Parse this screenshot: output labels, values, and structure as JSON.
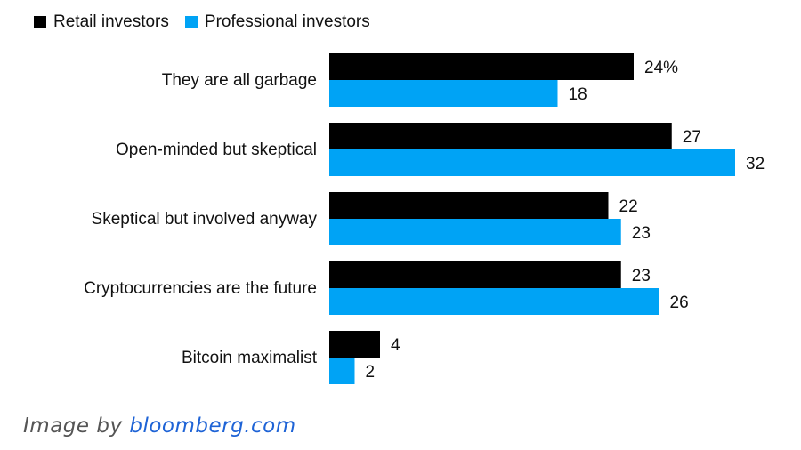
{
  "legend": {
    "retail": "Retail investors",
    "professional": "Professional investors"
  },
  "credit": {
    "prefix": "Image by",
    "site": "bloomberg.com"
  },
  "chart_data": {
    "type": "bar",
    "orientation": "horizontal",
    "grid": false,
    "legend_position": "top-left",
    "categories": [
      "They are all garbage",
      "Open-minded but skeptical",
      "Skeptical but involved anyway",
      "Cryptocurrencies are the future",
      "Bitcoin maximalist"
    ],
    "series": [
      {
        "name": "Retail investors",
        "color": "#000000",
        "values": [
          24,
          27,
          22,
          23,
          4
        ],
        "labels": [
          "24%",
          "27",
          "22",
          "23",
          "4"
        ]
      },
      {
        "name": "Professional investors",
        "color": "#00a3f5",
        "values": [
          18,
          32,
          23,
          26,
          2
        ],
        "labels": [
          "18",
          "32",
          "23",
          "26",
          "2"
        ]
      }
    ]
  }
}
